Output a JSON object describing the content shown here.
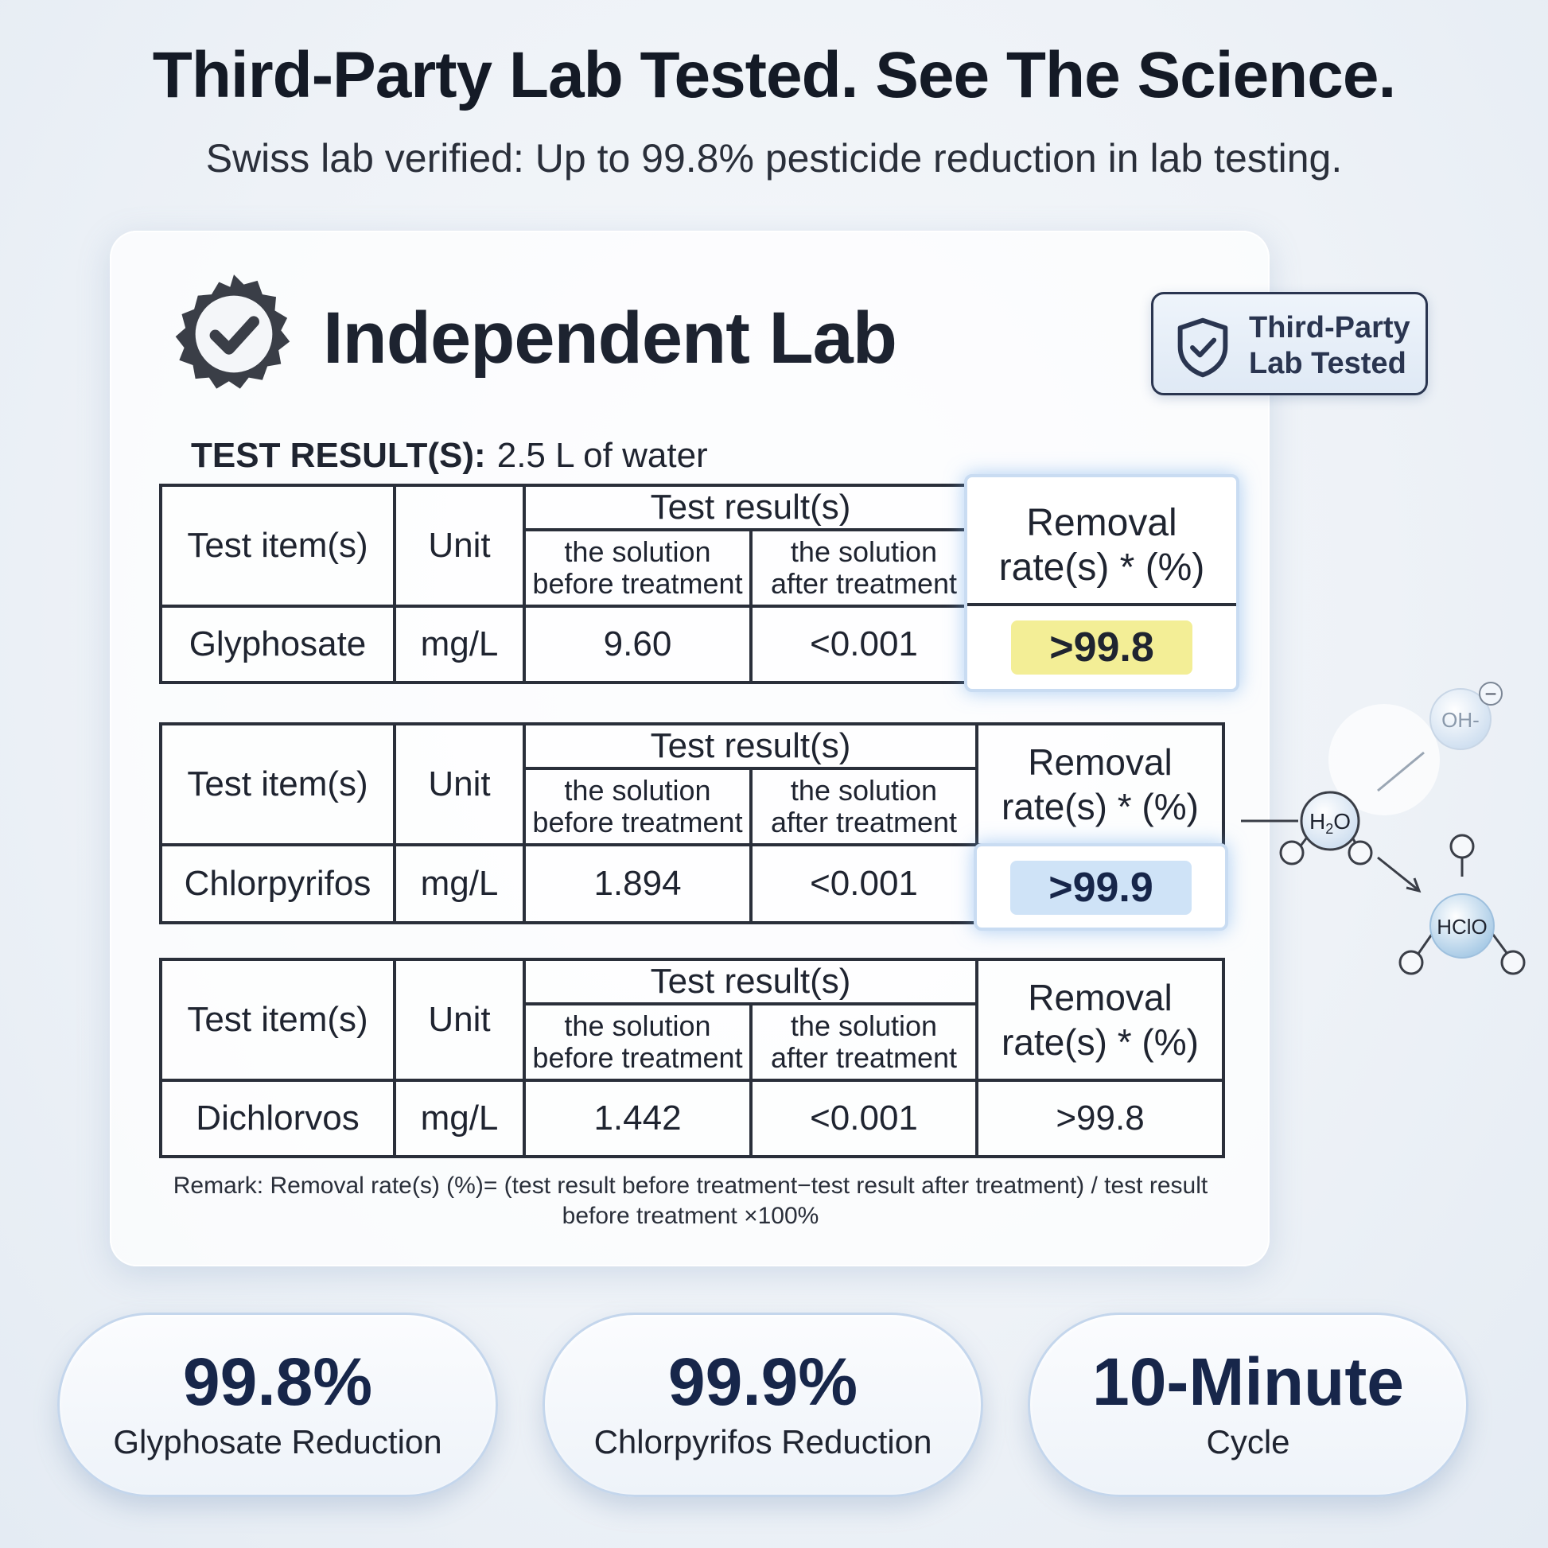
{
  "headline": "Third-Party Lab Tested. See The Science.",
  "subheadline": "Swiss lab verified: Up to 99.8% pesticide reduction in lab testing.",
  "card": {
    "title": "Independent Lab",
    "badge_line1": "Third-Party",
    "badge_line2": "Lab Tested",
    "test_label": "TEST RESULT(S):",
    "test_value": "2.5 L of water"
  },
  "table_headers": {
    "item": "Test item(s)",
    "unit": "Unit",
    "results": "Test result(s)",
    "before_1": "the solution",
    "before_2": "before treatment",
    "after_1": "the solution",
    "after_2": "after treatment",
    "removal_1": "Removal",
    "removal_2": "rate(s) * (%)"
  },
  "rows": [
    {
      "item": "Glyphosate",
      "unit": "mg/L",
      "before": "9.60",
      "after": "<0.001",
      "removal": ">99.8"
    },
    {
      "item": "Chlorpyrifos",
      "unit": "mg/L",
      "before": "1.894",
      "after": "<0.001",
      "removal": ">99.9"
    },
    {
      "item": "Dichlorvos",
      "unit": "mg/L",
      "before": "1.442",
      "after": "<0.001",
      "removal": ">99.8"
    }
  ],
  "remark_line1": "Remark: Removal rate(s) (%)= (test result before treatment−test result after treatment) / test result",
  "remark_line2": "before treatment ×100%",
  "molecules": {
    "oh": "OH-",
    "minus": "−",
    "h2o_h": "H",
    "h2o_2": "2",
    "h2o_o": "O",
    "hclo": "HClO"
  },
  "stats": [
    {
      "value": "99.8%",
      "label": "Glyphosate Reduction"
    },
    {
      "value": "99.9%",
      "label": "Chlorpyrifos Reduction"
    },
    {
      "value": "10-Minute",
      "label": "Cycle"
    }
  ],
  "colors": {
    "navy": "#17264a",
    "highlight_yellow": "#f3ee96",
    "highlight_blue": "#cfe3f7"
  }
}
